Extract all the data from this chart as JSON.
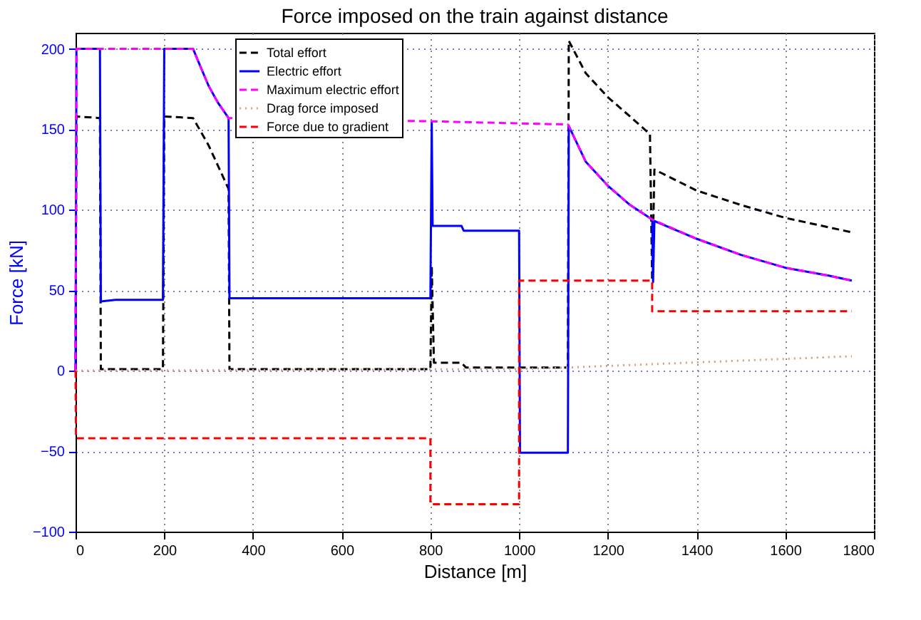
{
  "chart_data": {
    "type": "line",
    "title": "Force imposed on the train against distance",
    "xlabel": "Distance [m]",
    "ylabel": "Force [kN]",
    "xlim": [
      0,
      1800
    ],
    "xticks": [
      0,
      200,
      400,
      600,
      800,
      1000,
      1200,
      1400,
      1600,
      1800
    ],
    "ylim": [
      -100,
      210
    ],
    "yticks": [
      -100,
      -50,
      0,
      50,
      100,
      150,
      200
    ],
    "grid": true,
    "legend": "top",
    "marker": "none",
    "series": [
      {
        "name": "Total effort",
        "color": "#000000",
        "line_style": "dashed",
        "x": [
          0,
          2,
          55,
          57,
          197,
          200,
          265,
          300,
          320,
          345,
          347,
          800,
          803,
          808,
          870,
          880,
          1000,
          1110,
          1112,
          1150,
          1200,
          1250,
          1295,
          1300,
          1305,
          1400,
          1500,
          1600,
          1700,
          1750
        ],
        "values": [
          0,
          158,
          157,
          1,
          1,
          158,
          157,
          140,
          128,
          113,
          1,
          1,
          65,
          5,
          5,
          2,
          2,
          2,
          205,
          185,
          170,
          158,
          147,
          56,
          125,
          112,
          103,
          95,
          89,
          86
        ]
      },
      {
        "name": "Electric effort",
        "color": "#0000ff",
        "line_style": "solid",
        "x": [
          0,
          2,
          55,
          57,
          90,
          197,
          200,
          265,
          280,
          300,
          320,
          345,
          347,
          800,
          803,
          805,
          870,
          875,
          1000,
          1002,
          1110,
          1112,
          1150,
          1200,
          1250,
          1300,
          1302,
          1305,
          1400,
          1500,
          1600,
          1700,
          1750
        ],
        "values": [
          0,
          200,
          200,
          43,
          44,
          44,
          200,
          200,
          190,
          177,
          167,
          157,
          45,
          45,
          155,
          90,
          90,
          87,
          87,
          -51,
          -51,
          152,
          130,
          115,
          103,
          94,
          55,
          93,
          82,
          72,
          64,
          59,
          56
        ]
      },
      {
        "name": "Maximum electric effort",
        "color": "#ff00ff",
        "line_style": "dashed",
        "x": [
          0,
          2,
          265,
          280,
          300,
          320,
          345,
          800,
          1110,
          1112,
          1150,
          1200,
          1250,
          1300,
          1400,
          1500,
          1600,
          1700,
          1750
        ],
        "values": [
          0,
          200,
          200,
          190,
          177,
          167,
          157,
          155,
          153,
          152,
          130,
          115,
          103,
          94,
          82,
          72,
          64,
          59,
          56
        ]
      },
      {
        "name": "Drag force imposed",
        "color": "#d2a07a",
        "line_style": "dotted",
        "x": [
          0,
          1000,
          1110,
          1750
        ],
        "values": [
          0,
          1,
          2,
          9
        ]
      },
      {
        "name": "Force due to gradient",
        "color": "#ff0000",
        "line_style": "dashed",
        "x": [
          0,
          1,
          800,
          800,
          1000,
          1000,
          1300,
          1300,
          1750
        ],
        "values": [
          0,
          -42,
          -42,
          -83,
          -83,
          56,
          56,
          37,
          37
        ]
      }
    ]
  }
}
